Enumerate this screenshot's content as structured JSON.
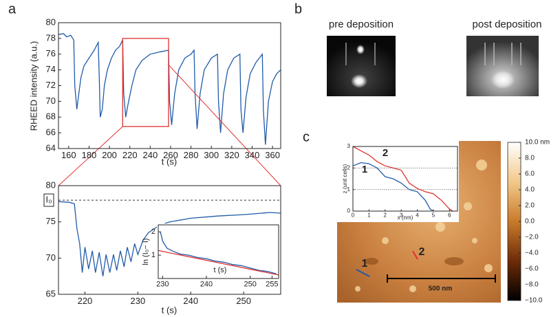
{
  "panels": {
    "a": "a",
    "b": "b",
    "c": "c"
  },
  "rheed": {
    "pre": "pre deposition",
    "post": "post deposition"
  },
  "afm": {
    "scale_bar": "500 nm",
    "line_labels": [
      "1",
      "2"
    ]
  },
  "chart_data": [
    {
      "type": "line",
      "ylabel": "RHEED intensity (a.u.)",
      "xlabel": "t (s)",
      "xlim": [
        150,
        368
      ],
      "ylim": [
        64,
        80
      ],
      "xticks": [
        160,
        180,
        200,
        220,
        240,
        260,
        280,
        300,
        320,
        340,
        360
      ],
      "yticks": [
        64,
        66,
        68,
        70,
        72,
        74,
        76,
        78,
        80
      ],
      "highlight": {
        "x": [
          213,
          258
        ],
        "y": [
          66.8,
          78
        ],
        "color": "#e03030"
      },
      "series": [
        {
          "color": "#1f5aa8",
          "x": [
            150,
            155,
            158,
            162,
            165,
            166,
            168,
            170,
            172,
            175,
            180,
            185,
            189,
            190,
            191,
            193,
            195,
            198,
            202,
            206,
            210,
            213,
            214,
            216,
            218,
            222,
            226,
            232,
            240,
            250,
            258,
            259,
            261,
            264,
            268,
            274,
            280,
            283,
            284,
            286,
            289,
            293,
            300,
            306,
            307,
            309,
            312,
            316,
            322,
            328,
            329,
            331,
            334,
            338,
            344,
            350,
            351,
            353,
            356,
            360,
            364,
            368
          ],
          "values": [
            78.5,
            78.6,
            78.2,
            78.4,
            77.8,
            72,
            69,
            71,
            73,
            74.5,
            75.5,
            76.5,
            77.5,
            73,
            68,
            69,
            72,
            74,
            75.5,
            76.5,
            77,
            77.8,
            71,
            68,
            69.5,
            72,
            74,
            75.2,
            76,
            76.3,
            76.5,
            70,
            67,
            71,
            74,
            75.5,
            76,
            76.5,
            71,
            66.5,
            71,
            74,
            75.5,
            76,
            70,
            66,
            71,
            74,
            75.5,
            76,
            69,
            66,
            70.5,
            73.5,
            75,
            76,
            69,
            64.5,
            70,
            72.5,
            73.5,
            74
          ]
        }
      ]
    },
    {
      "type": "line",
      "xlabel": "t (s)",
      "xlim": [
        215,
        257
      ],
      "ylim": [
        65,
        80
      ],
      "xticks": [
        220,
        230,
        240,
        250
      ],
      "yticks": [
        65,
        70,
        75,
        80
      ],
      "reference": {
        "value": 78,
        "label": "I₀"
      },
      "series": [
        {
          "color": "#1f5aa8",
          "x": [
            215,
            217,
            218,
            218.5,
            219,
            219.5,
            220,
            220.7,
            221.4,
            222,
            222.7,
            223.4,
            224,
            224.7,
            225.4,
            226,
            226.7,
            227.4,
            228,
            228.7,
            229.4,
            230,
            231,
            232,
            234,
            236,
            240,
            245,
            250,
            255,
            257
          ],
          "values": [
            77.8,
            77.7,
            77.5,
            74,
            72,
            68,
            71.5,
            68.5,
            71,
            68,
            70.8,
            67.5,
            70.5,
            68,
            70.5,
            68.3,
            71,
            68.8,
            71.5,
            69.5,
            72,
            70.5,
            72.5,
            73.5,
            74.5,
            75,
            75.5,
            75.8,
            76,
            76.3,
            76.2
          ]
        }
      ]
    },
    {
      "type": "line",
      "ylabel": "ln (I₀− I)",
      "xlabel": "t (s)",
      "xlim": [
        229,
        256.5
      ],
      "ylim": [
        0,
        2.3
      ],
      "xticks": [
        230,
        240,
        250,
        255
      ],
      "yticks": [
        1,
        2
      ],
      "series": [
        {
          "color": "#1f5aa8",
          "x": [
            229.5,
            230,
            231,
            232,
            234,
            236,
            238,
            240,
            242,
            244,
            246,
            248,
            250,
            252,
            254,
            256
          ],
          "values": [
            2,
            1.6,
            1.3,
            1.2,
            1.05,
            1.0,
            0.9,
            0.85,
            0.75,
            0.7,
            0.6,
            0.55,
            0.45,
            0.35,
            0.3,
            0.2
          ]
        },
        {
          "color": "#e03030",
          "x": [
            229,
            256.5
          ],
          "values": [
            1.2,
            0.15
          ]
        }
      ]
    },
    {
      "type": "line",
      "ylabel": "z (unit cells)",
      "xlabel": "x (nm)",
      "xlim": [
        0,
        6.5
      ],
      "ylim": [
        0,
        3
      ],
      "xticks": [
        0,
        1,
        2,
        3,
        4,
        5,
        6
      ],
      "yticks": [
        0,
        1,
        2,
        3
      ],
      "hlines": [
        1,
        2
      ],
      "series": [
        {
          "name": "1",
          "color": "#1f5aa8",
          "x": [
            0,
            0.5,
            1,
            1.5,
            2,
            2.5,
            3,
            3.5,
            4,
            4.5,
            4.8,
            5
          ],
          "values": [
            2.1,
            2.25,
            2.2,
            2.0,
            1.6,
            1.5,
            1.3,
            1.0,
            0.9,
            0.5,
            0.1,
            0
          ]
        },
        {
          "name": "2",
          "color": "#e03030",
          "x": [
            0,
            0.5,
            1,
            1.5,
            2,
            2.5,
            3,
            3.5,
            4,
            4.5,
            5,
            5.5,
            6,
            6.2
          ],
          "values": [
            3,
            2.8,
            2.6,
            2.3,
            2.1,
            2.0,
            1.9,
            1.3,
            1.05,
            0.9,
            0.8,
            0.5,
            0.1,
            0
          ]
        }
      ]
    },
    {
      "type": "colorbar",
      "ylim": [
        -10,
        10
      ],
      "ticks": [
        {
          "value": 10,
          "label": "10.0 nm"
        },
        {
          "value": 8,
          "label": "8.0"
        },
        {
          "value": 6,
          "label": "6.0"
        },
        {
          "value": 4,
          "label": "4.0"
        },
        {
          "value": 2,
          "label": "2.0"
        },
        {
          "value": 0,
          "label": "0.0"
        },
        {
          "value": -2,
          "label": "−2.0"
        },
        {
          "value": -4,
          "label": "−4.0"
        },
        {
          "value": -6,
          "label": "−6.0"
        },
        {
          "value": -8,
          "label": "−8.0"
        },
        {
          "value": -10,
          "label": "−10.0"
        }
      ]
    }
  ]
}
